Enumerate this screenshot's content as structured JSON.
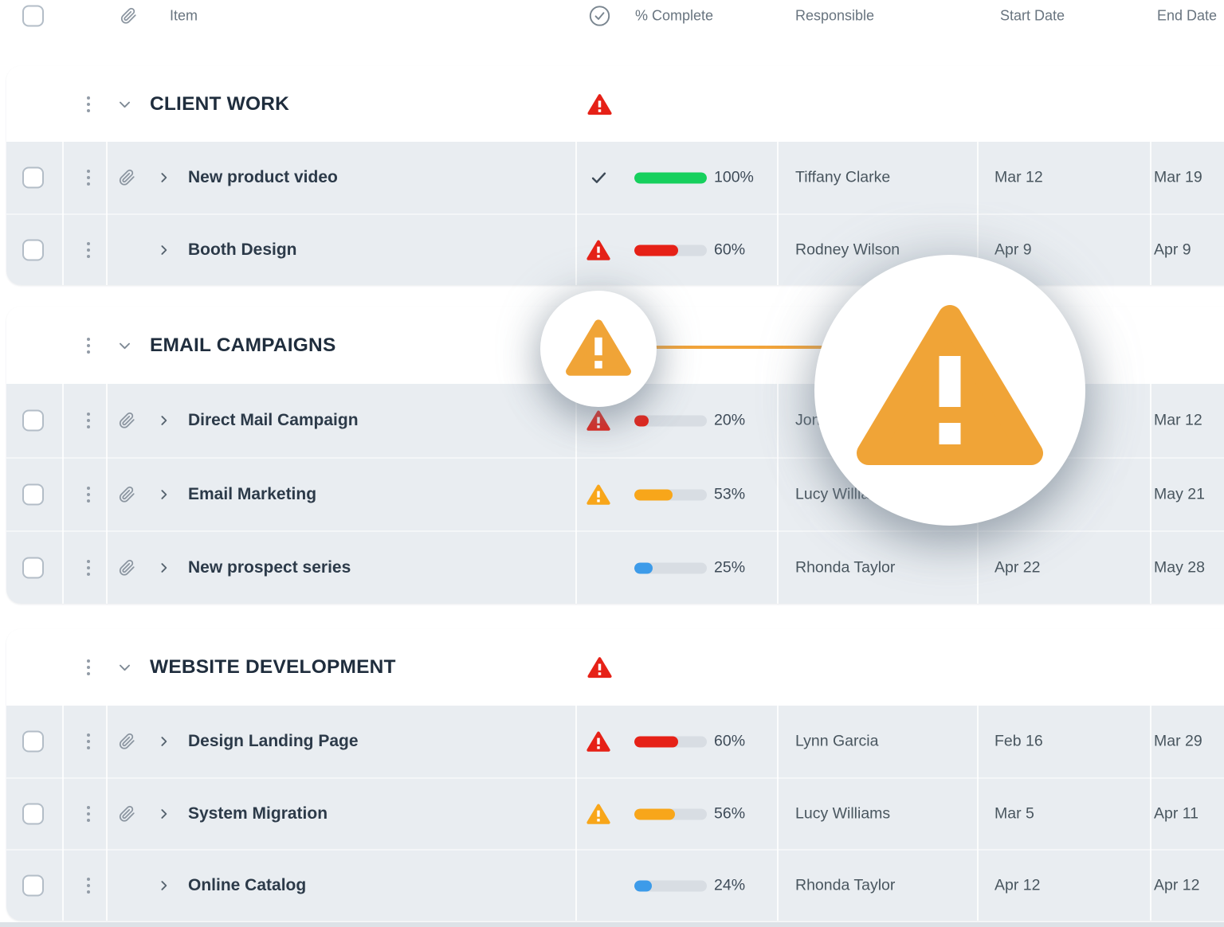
{
  "colors": {
    "green": "#16d05d",
    "red": "#e62117",
    "orange": "#f8a61a",
    "blue": "#3d9be9",
    "track": "#d8dde3",
    "callout_orange": "#f0a437",
    "row_bg": "#e9edf1"
  },
  "icons": {
    "attachment": "paperclip",
    "row_menu": "kebab-dots",
    "row_expand": "chevron-right",
    "group_collapse": "chevron-down",
    "complete_header": "circle-check",
    "status_done": "check",
    "status_alert": "warning-triangle"
  },
  "header": {
    "item": "Item",
    "complete": "% Complete",
    "responsible": "Responsible",
    "start": "Start Date",
    "end": "End Date"
  },
  "callout": {
    "type": "magnified-warning-indicator",
    "connector_color": "#f2a43a"
  },
  "groups": [
    {
      "title": "CLIENT WORK",
      "status": "alert-red",
      "items": [
        {
          "title": "New product video",
          "attachment": true,
          "status": "complete",
          "pct": 100,
          "pct_label": "100%",
          "bar_color": "green",
          "responsible": "Tiffany Clarke",
          "start": "Mar 12",
          "end": "Mar 19"
        },
        {
          "title": "Booth Design",
          "attachment": false,
          "status": "alert-red",
          "pct": 60,
          "pct_label": "60%",
          "bar_color": "red",
          "responsible": "Rodney Wilson",
          "start": "Apr 9",
          "end": "Apr 9"
        }
      ]
    },
    {
      "title": "EMAIL CAMPAIGNS",
      "status": "alert-orange-magnified",
      "items": [
        {
          "title": "Direct Mail Campaign",
          "attachment": true,
          "status": "alert-red",
          "pct": 20,
          "pct_label": "20%",
          "bar_color": "red",
          "responsible": "Jon",
          "start": "",
          "end": "Mar 12"
        },
        {
          "title": "Email Marketing",
          "attachment": true,
          "status": "alert-orange",
          "pct": 53,
          "pct_label": "53%",
          "bar_color": "orange",
          "responsible": "Lucy Williams",
          "start": "",
          "end": "May 21"
        },
        {
          "title": "New prospect series",
          "attachment": true,
          "status": "none",
          "pct": 25,
          "pct_label": "25%",
          "bar_color": "blue",
          "responsible": "Rhonda Taylor",
          "start": "Apr 22",
          "end": "May 28"
        }
      ]
    },
    {
      "title": "WEBSITE DEVELOPMENT",
      "status": "alert-red",
      "items": [
        {
          "title": "Design Landing Page",
          "attachment": true,
          "status": "alert-red",
          "pct": 60,
          "pct_label": "60%",
          "bar_color": "red",
          "responsible": "Lynn Garcia",
          "start": "Feb 16",
          "end": "Mar 29"
        },
        {
          "title": "System Migration",
          "attachment": true,
          "status": "alert-orange",
          "pct": 56,
          "pct_label": "56%",
          "bar_color": "orange",
          "responsible": "Lucy Williams",
          "start": "Mar 5",
          "end": "Apr 11"
        },
        {
          "title": "Online Catalog",
          "attachment": false,
          "status": "none",
          "pct": 24,
          "pct_label": "24%",
          "bar_color": "blue",
          "responsible": "Rhonda Taylor",
          "start": "Apr 12",
          "end": "Apr 12"
        }
      ]
    }
  ]
}
